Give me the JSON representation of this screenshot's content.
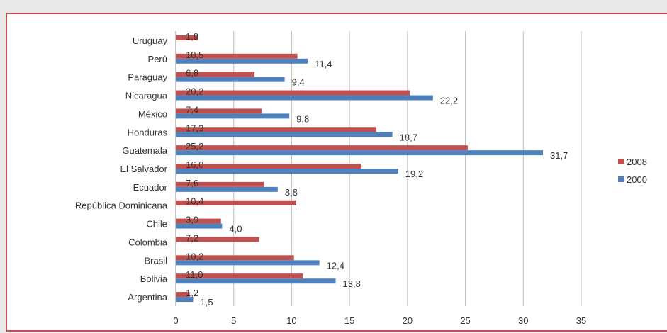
{
  "chart_data": {
    "type": "bar",
    "orientation": "horizontal",
    "categories": [
      "Argentina",
      "Bolivia",
      "Brasil",
      "Colombia",
      "Chile",
      "República Dominicana",
      "Ecuador",
      "El Salvador",
      "Guatemala",
      "Honduras",
      "México",
      "Nicaragua",
      "Paraguay",
      "Perú",
      "Uruguay"
    ],
    "series": [
      {
        "name": "2008",
        "color": "#c0504d",
        "values": [
          1.2,
          11.0,
          10.2,
          7.2,
          3.9,
          10.4,
          7.6,
          16.0,
          25.2,
          17.3,
          7.4,
          20.2,
          6.8,
          10.5,
          1.9
        ],
        "labels": [
          "1,2",
          "11,0",
          "10,2",
          "7,2",
          "3,9",
          "10,4",
          "7,6",
          "16,0",
          "25,2",
          "17,3",
          "7,4",
          "20,2",
          "6,8",
          "10,5",
          "1,9"
        ]
      },
      {
        "name": "2000",
        "color": "#4f81bd",
        "values": [
          1.5,
          13.8,
          12.4,
          null,
          4.0,
          null,
          8.8,
          19.2,
          31.7,
          18.7,
          9.8,
          22.2,
          9.4,
          11.4,
          null
        ],
        "labels": [
          "1,5",
          "13,8",
          "12,4",
          "",
          "4,0",
          "",
          "8,8",
          "19,2",
          "31,7",
          "18,7",
          "9,8",
          "22,2",
          "9,4",
          "11,4",
          ""
        ]
      }
    ],
    "xlim": [
      0,
      35
    ],
    "xticks": [
      "0",
      "5",
      "10",
      "15",
      "20",
      "25",
      "30",
      "35"
    ],
    "grid": "vertical",
    "legend": "right"
  }
}
